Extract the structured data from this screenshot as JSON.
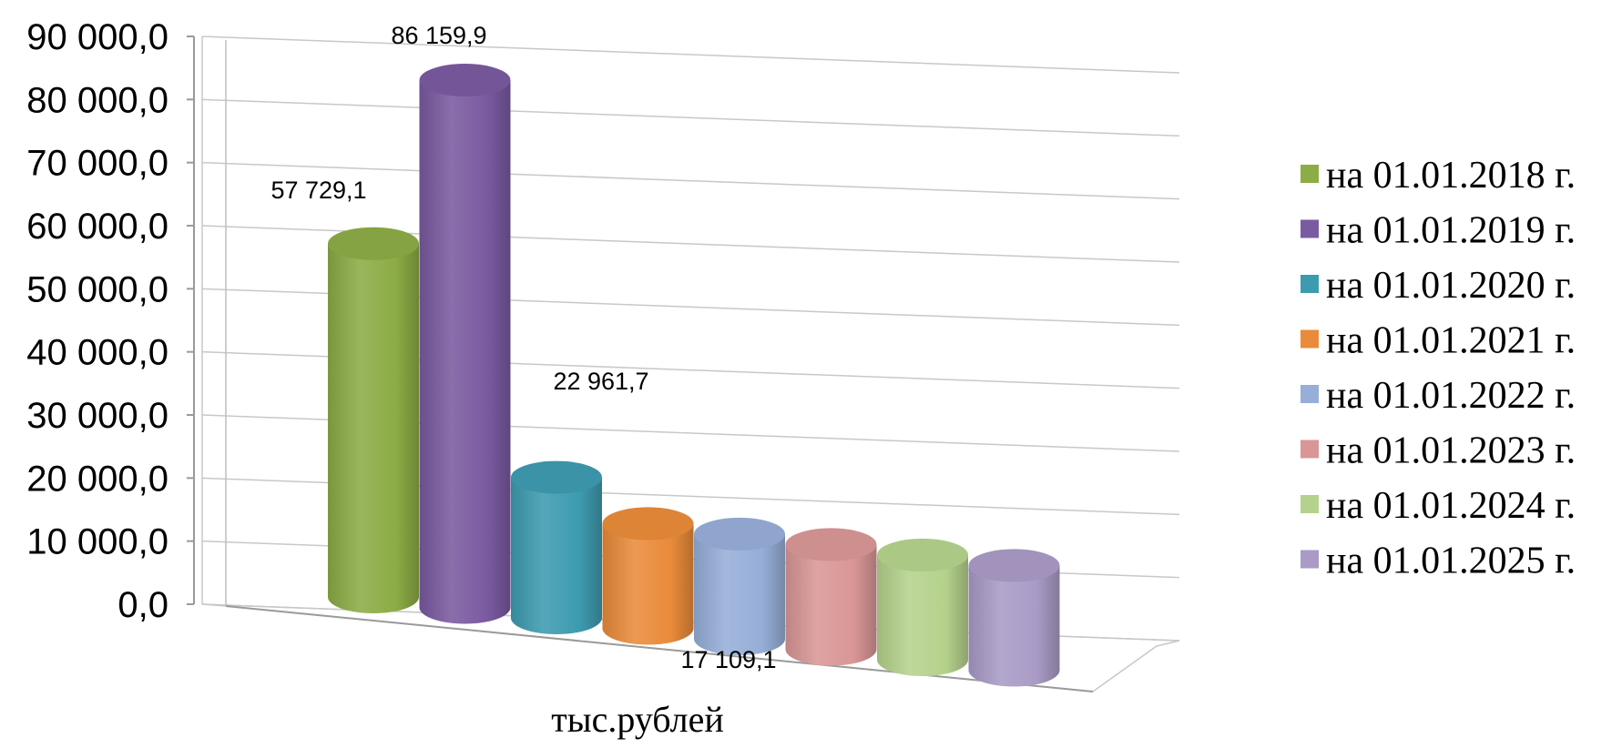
{
  "chart_data": {
    "type": "bar",
    "style": "3d-cylinder",
    "categories": [
      "на 01.01.2018 г.",
      "на 01.01.2019 г.",
      "на 01.01.2020 г.",
      "на 01.01.2021 г.",
      "на 01.01.2022 г.",
      "на 01.01.2023 г.",
      "на 01.01.2024 г.",
      "на 01.01.2025 г."
    ],
    "values": [
      57729.1,
      86159.9,
      22961.7,
      17109.1,
      17109.1,
      17109.1,
      17109.1,
      17109.1
    ],
    "colors": [
      "#8cac45",
      "#7a5aa0",
      "#3d9bb0",
      "#e98b3a",
      "#96aed8",
      "#d99696",
      "#b5d28c",
      "#a99bc6"
    ],
    "data_labels": [
      {
        "index": 0,
        "text": "57 729,1"
      },
      {
        "index": 1,
        "text": "86 159,9"
      },
      {
        "index": 2,
        "text": "22 961,7"
      },
      {
        "index": 3,
        "text": "17 109,1"
      }
    ],
    "yticks": [
      "0,0",
      "10 000,0",
      "20 000,0",
      "30 000,0",
      "40 000,0",
      "50 000,0",
      "60 000,0",
      "70 000,0",
      "80 000,0",
      "90 000,0"
    ],
    "ylim": [
      0,
      90000
    ],
    "xlabel": "тыс.рублей",
    "ylabel": "",
    "title": "",
    "grid": true,
    "legend_position": "right"
  }
}
